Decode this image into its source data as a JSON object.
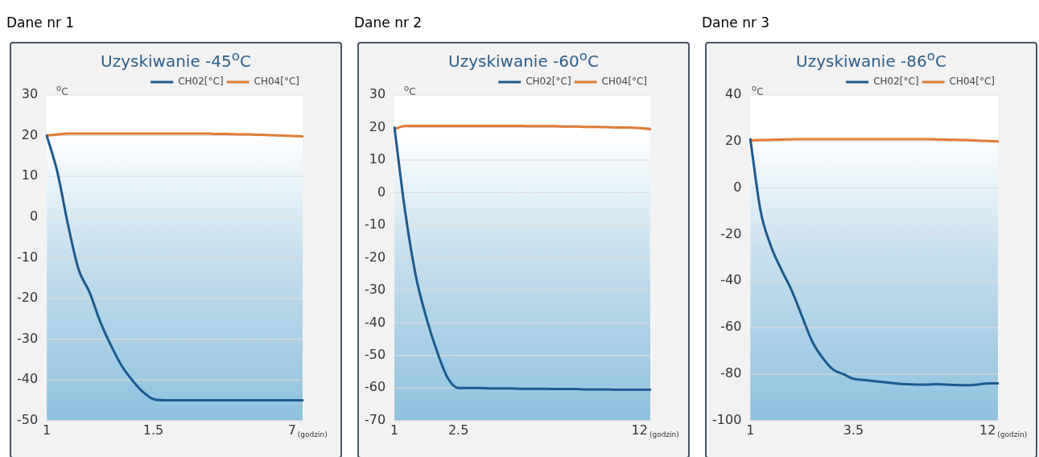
{
  "chart_data": [
    {
      "type": "line",
      "title": "Dane nr 1",
      "subtitle": "Uzyskiwanie -45$^{o}$C",
      "ylabel": "$^{o}$C",
      "xlabel": "(godzin)",
      "categories": [
        "1",
        null,
        null,
        null,
        null,
        null,
        null,
        null,
        null,
        null,
        "1.5",
        null,
        null,
        null,
        null,
        null,
        null,
        null,
        null,
        null,
        null,
        null,
        null,
        "7",
        null
      ],
      "series": [
        {
          "name": "CH02[°C]",
          "color": "#1d5a8e",
          "values": [
            20,
            11,
            -2,
            -13,
            -18.4,
            -25.6,
            -31.4,
            -36.4,
            -40,
            -42.9,
            -44.7,
            -45,
            -45,
            -45,
            -45,
            -45,
            -45,
            -45,
            -45,
            -45,
            -45,
            -45,
            -45,
            -45,
            -45
          ]
        },
        {
          "name": "CH04[°C]",
          "color": "#e07b35",
          "values": [
            20,
            20.3,
            20.5,
            20.5,
            20.5,
            20.5,
            20.5,
            20.5,
            20.5,
            20.5,
            20.5,
            20.5,
            20.5,
            20.5,
            20.5,
            20.5,
            20.4,
            20.4,
            20.3,
            20.3,
            20.2,
            20.1,
            20,
            19.9,
            19.8
          ]
        }
      ],
      "ylim": [
        -50,
        30
      ],
      "yticks": [
        -50,
        -40,
        -30,
        -20,
        -10,
        0,
        10,
        20,
        30
      ],
      "grid": "y",
      "legend": "top right",
      "marker": "none",
      "line_style": "solid"
    },
    {
      "type": "line",
      "title": "Dane nr 2",
      "subtitle": "Uzyskiwanie -60$^{o}$C",
      "ylabel": "$^{o}$C",
      "xlabel": "(godzin)",
      "categories": [
        "1",
        null,
        null,
        null,
        null,
        null,
        "2.5",
        null,
        null,
        null,
        null,
        null,
        null,
        null,
        null,
        null,
        null,
        null,
        null,
        null,
        null,
        null,
        null,
        "12",
        null
      ],
      "series": [
        {
          "name": "CH02[°C]",
          "color": "#1d5a8e",
          "values": [
            20,
            -5.7,
            -25.5,
            -38.5,
            -48.8,
            -56.9,
            -60,
            -60,
            -60,
            -60.1,
            -60.1,
            -60.1,
            -60.2,
            -60.2,
            -60.2,
            -60.3,
            -60.3,
            -60.3,
            -60.4,
            -60.4,
            -60.4,
            -60.5,
            -60.5,
            -60.5,
            -60.5
          ]
        },
        {
          "name": "CH04[°C]",
          "color": "#e07b35",
          "values": [
            19.5,
            20.5,
            20.5,
            20.5,
            20.5,
            20.5,
            20.5,
            20.5,
            20.5,
            20.5,
            20.5,
            20.5,
            20.5,
            20.4,
            20.4,
            20.4,
            20.3,
            20.3,
            20.2,
            20.2,
            20.1,
            20,
            20,
            19.8,
            19.5
          ]
        }
      ],
      "ylim": [
        -70,
        30
      ],
      "yticks": [
        -70,
        -60,
        -50,
        -40,
        -30,
        -20,
        -10,
        0,
        10,
        20,
        30
      ],
      "grid": "y",
      "legend": "top right",
      "marker": "none",
      "line_style": "solid"
    },
    {
      "type": "line",
      "title": "Dane nr 3",
      "subtitle": "Uzyskiwanie -86$^{o}$C",
      "ylabel": "$^{o}$C",
      "xlabel": "(godzin)",
      "categories": [
        "1",
        null,
        null,
        null,
        null,
        null,
        null,
        null,
        null,
        null,
        "3.5",
        null,
        null,
        null,
        null,
        null,
        null,
        null,
        null,
        null,
        null,
        null,
        null,
        "12",
        null
      ],
      "series": [
        {
          "name": "CH02[°C]",
          "color": "#1d5a8e",
          "values": [
            21,
            -10,
            -25,
            -35,
            -44,
            -55,
            -66,
            -73,
            -78,
            -80,
            -82,
            -82.5,
            -83,
            -83.5,
            -84,
            -84.3,
            -84.5,
            -84.5,
            -84.3,
            -84.5,
            -84.7,
            -84.8,
            -84.5,
            -84,
            -84
          ]
        },
        {
          "name": "CH04[°C]",
          "color": "#e07b35",
          "values": [
            20.5,
            20.6,
            20.7,
            20.8,
            20.9,
            21,
            21,
            21,
            21,
            21,
            21,
            21,
            21,
            21,
            21,
            21,
            21,
            21,
            20.9,
            20.8,
            20.7,
            20.6,
            20.4,
            20.2,
            20
          ]
        }
      ],
      "ylim": [
        -100,
        40
      ],
      "yticks": [
        -100,
        -80,
        -60,
        -40,
        -20,
        0,
        20,
        40
      ],
      "grid": "y",
      "legend": "top right",
      "marker": "none",
      "line_style": "solid"
    }
  ]
}
